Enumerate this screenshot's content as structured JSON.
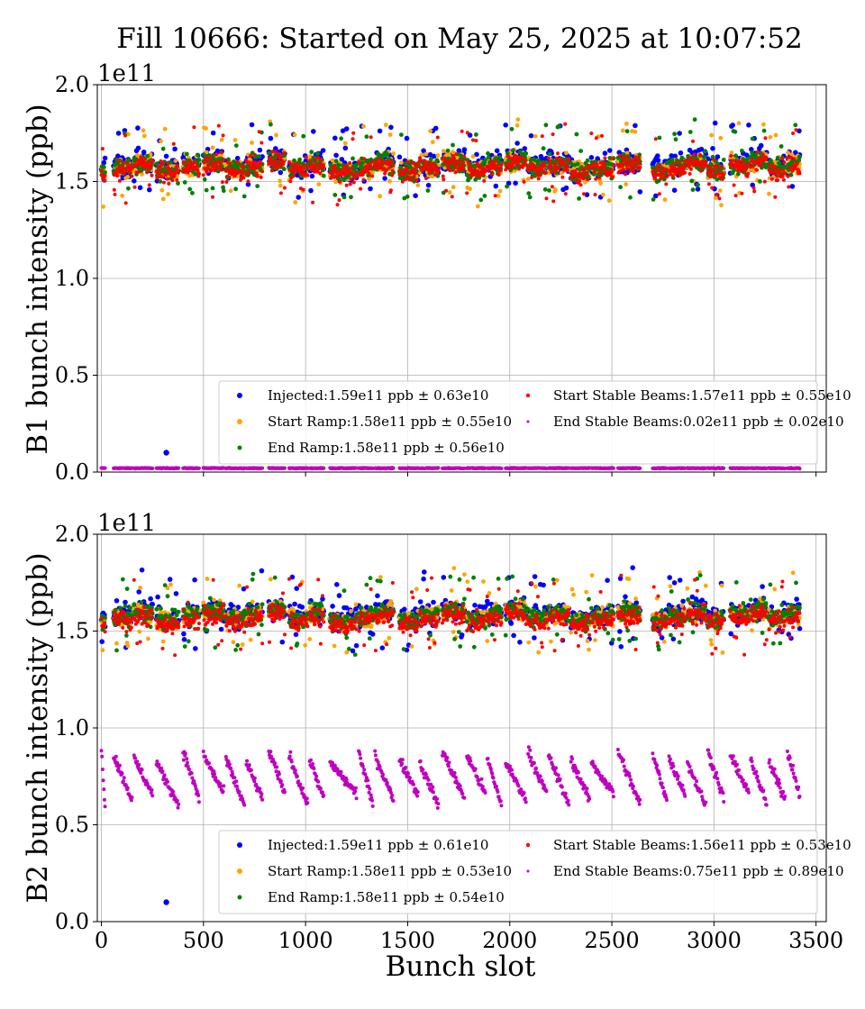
{
  "figure_title": "Fill 10666: Started on May 25, 2025 at 10:07:52",
  "chart_data": [
    {
      "type": "scatter",
      "title": "",
      "xlabel": "",
      "ylabel": "B1 bunch intensity (ppb)",
      "offset_text": "1e11",
      "xlim": [
        -20,
        3550
      ],
      "ylim": [
        0.0,
        2.0
      ],
      "xticks": [
        0,
        500,
        1000,
        1500,
        2000,
        2500,
        3000,
        3500
      ],
      "xtick_labels": [],
      "yticks": [
        0.0,
        0.5,
        1.0,
        1.5,
        2.0
      ],
      "ytick_labels": [
        "0.0",
        "0.5",
        "1.0",
        "1.5",
        "2.0"
      ],
      "grid": true,
      "legend_position": "lower-right",
      "trains": [
        [
          0,
          18
        ],
        [
          60,
          150
        ],
        [
          160,
          250
        ],
        [
          270,
          380
        ],
        [
          400,
          480
        ],
        [
          500,
          600
        ],
        [
          610,
          700
        ],
        [
          710,
          790
        ],
        [
          820,
          900
        ],
        [
          920,
          1010
        ],
        [
          1020,
          1090
        ],
        [
          1120,
          1250
        ],
        [
          1260,
          1330
        ],
        [
          1340,
          1430
        ],
        [
          1460,
          1550
        ],
        [
          1560,
          1650
        ],
        [
          1670,
          1780
        ],
        [
          1790,
          1880
        ],
        [
          1890,
          1960
        ],
        [
          1980,
          2080
        ],
        [
          2090,
          2180
        ],
        [
          2190,
          2290
        ],
        [
          2300,
          2390
        ],
        [
          2400,
          2510
        ],
        [
          2530,
          2640
        ],
        [
          2700,
          2770
        ],
        [
          2780,
          2860
        ],
        [
          2870,
          2960
        ],
        [
          2970,
          3050
        ],
        [
          3080,
          3170
        ],
        [
          3180,
          3260
        ],
        [
          3270,
          3350
        ],
        [
          3360,
          3420
        ]
      ],
      "series": [
        {
          "name": "Injected",
          "color": "#0000ff",
          "marker": "dot-large",
          "legend": "Injected:1.59e11 ppb ± 0.63e10",
          "mean": 1.59,
          "spread": 0.063,
          "outliers": [
            {
              "x": 318,
              "y": 0.1
            }
          ]
        },
        {
          "name": "Start Ramp",
          "color": "#ffa500",
          "marker": "dot-medium",
          "legend": "Start Ramp:1.58e11 ppb ± 0.55e10",
          "mean": 1.58,
          "spread": 0.055
        },
        {
          "name": "End Ramp",
          "color": "#008000",
          "marker": "dot-medium",
          "legend": "End Ramp:1.58e11 ppb ± 0.56e10",
          "mean": 1.58,
          "spread": 0.056
        },
        {
          "name": "Start Stable Beams",
          "color": "#ff0000",
          "marker": "dot-small",
          "legend": "Start Stable Beams:1.57e11 ppb ± 0.55e10",
          "mean": 1.57,
          "spread": 0.055
        },
        {
          "name": "End Stable Beams",
          "color": "#bf00bf",
          "marker": "dot-small",
          "legend": "End Stable Beams:0.02e11 ppb ± 0.02e10",
          "mean": 0.02,
          "spread": 0.002,
          "shape": "flat"
        }
      ]
    },
    {
      "type": "scatter",
      "title": "",
      "xlabel": "Bunch slot",
      "ylabel": "B2 bunch intensity (ppb)",
      "offset_text": "1e11",
      "xlim": [
        -20,
        3550
      ],
      "ylim": [
        0.0,
        2.0
      ],
      "xticks": [
        0,
        500,
        1000,
        1500,
        2000,
        2500,
        3000,
        3500
      ],
      "xtick_labels": [
        "0",
        "500",
        "1000",
        "1500",
        "2000",
        "2500",
        "3000",
        "3500"
      ],
      "yticks": [
        0.0,
        0.5,
        1.0,
        1.5,
        2.0
      ],
      "ytick_labels": [
        "0.0",
        "0.5",
        "1.0",
        "1.5",
        "2.0"
      ],
      "grid": true,
      "legend_position": "lower-right",
      "trains": [
        [
          0,
          18
        ],
        [
          60,
          150
        ],
        [
          160,
          250
        ],
        [
          270,
          380
        ],
        [
          400,
          480
        ],
        [
          500,
          600
        ],
        [
          610,
          700
        ],
        [
          710,
          790
        ],
        [
          820,
          900
        ],
        [
          920,
          1010
        ],
        [
          1020,
          1090
        ],
        [
          1120,
          1250
        ],
        [
          1260,
          1330
        ],
        [
          1340,
          1430
        ],
        [
          1460,
          1550
        ],
        [
          1560,
          1650
        ],
        [
          1670,
          1780
        ],
        [
          1790,
          1880
        ],
        [
          1890,
          1960
        ],
        [
          1980,
          2080
        ],
        [
          2090,
          2180
        ],
        [
          2190,
          2290
        ],
        [
          2300,
          2390
        ],
        [
          2400,
          2510
        ],
        [
          2530,
          2640
        ],
        [
          2700,
          2770
        ],
        [
          2780,
          2860
        ],
        [
          2870,
          2960
        ],
        [
          2970,
          3050
        ],
        [
          3080,
          3170
        ],
        [
          3180,
          3260
        ],
        [
          3270,
          3350
        ],
        [
          3360,
          3420
        ]
      ],
      "series": [
        {
          "name": "Injected",
          "color": "#0000ff",
          "marker": "dot-large",
          "legend": "Injected:1.59e11 ppb ± 0.61e10",
          "mean": 1.59,
          "spread": 0.061,
          "outliers": [
            {
              "x": 318,
              "y": 0.1
            }
          ]
        },
        {
          "name": "Start Ramp",
          "color": "#ffa500",
          "marker": "dot-medium",
          "legend": "Start Ramp:1.58e11 ppb ± 0.53e10",
          "mean": 1.58,
          "spread": 0.053
        },
        {
          "name": "End Ramp",
          "color": "#008000",
          "marker": "dot-medium",
          "legend": "End Ramp:1.58e11 ppb ± 0.54e10",
          "mean": 1.58,
          "spread": 0.054
        },
        {
          "name": "Start Stable Beams",
          "color": "#ff0000",
          "marker": "dot-small",
          "legend": "Start Stable Beams:1.56e11 ppb ± 0.53e10",
          "mean": 1.56,
          "spread": 0.053
        },
        {
          "name": "End Stable Beams",
          "color": "#bf00bf",
          "marker": "dot-small",
          "legend": "End Stable Beams:0.75e11 ppb ± 0.89e10",
          "mean": 0.75,
          "spread": 0.089,
          "shape": "decaying",
          "decay_range": [
            0.88,
            0.6
          ]
        }
      ]
    }
  ]
}
